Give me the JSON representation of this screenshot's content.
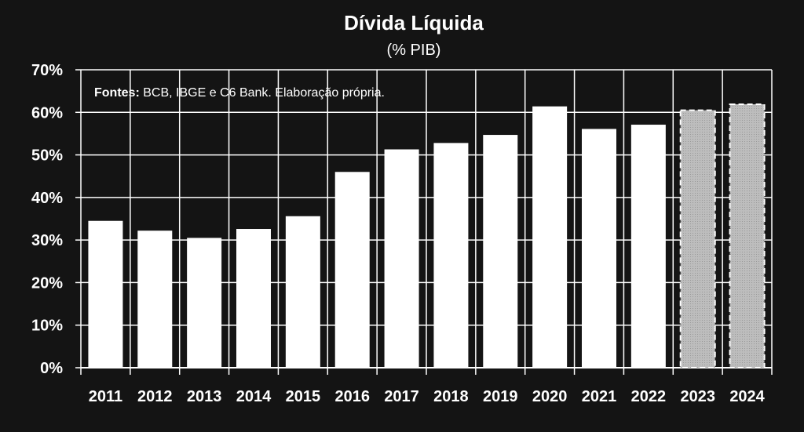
{
  "chart_data": {
    "type": "bar",
    "title": "Dívida Líquida",
    "subtitle": "(% PIB)",
    "note_label": "Fontes:",
    "note_text": " BCB, IBGE e C6 Bank. Elaboração própria.",
    "categories": [
      "2011",
      "2012",
      "2013",
      "2014",
      "2015",
      "2016",
      "2017",
      "2018",
      "2019",
      "2020",
      "2021",
      "2022",
      "2023",
      "2024"
    ],
    "values": [
      34.5,
      32.2,
      30.5,
      32.6,
      35.6,
      46.0,
      51.3,
      52.8,
      54.7,
      61.4,
      56.1,
      57.1,
      60.5,
      61.9
    ],
    "projected": [
      false,
      false,
      false,
      false,
      false,
      false,
      false,
      false,
      false,
      false,
      false,
      false,
      true,
      true
    ],
    "ylim": [
      0,
      70
    ],
    "yticks": [
      0,
      10,
      20,
      30,
      40,
      50,
      60,
      70
    ],
    "ytick_labels": [
      "0%",
      "10%",
      "20%",
      "30%",
      "40%",
      "50%",
      "60%",
      "70%"
    ],
    "grid": true,
    "colors": {
      "background": "#141414",
      "bar": "#ffffff",
      "projected_bar": "#bdbdbd",
      "grid": "#ffffff"
    }
  }
}
